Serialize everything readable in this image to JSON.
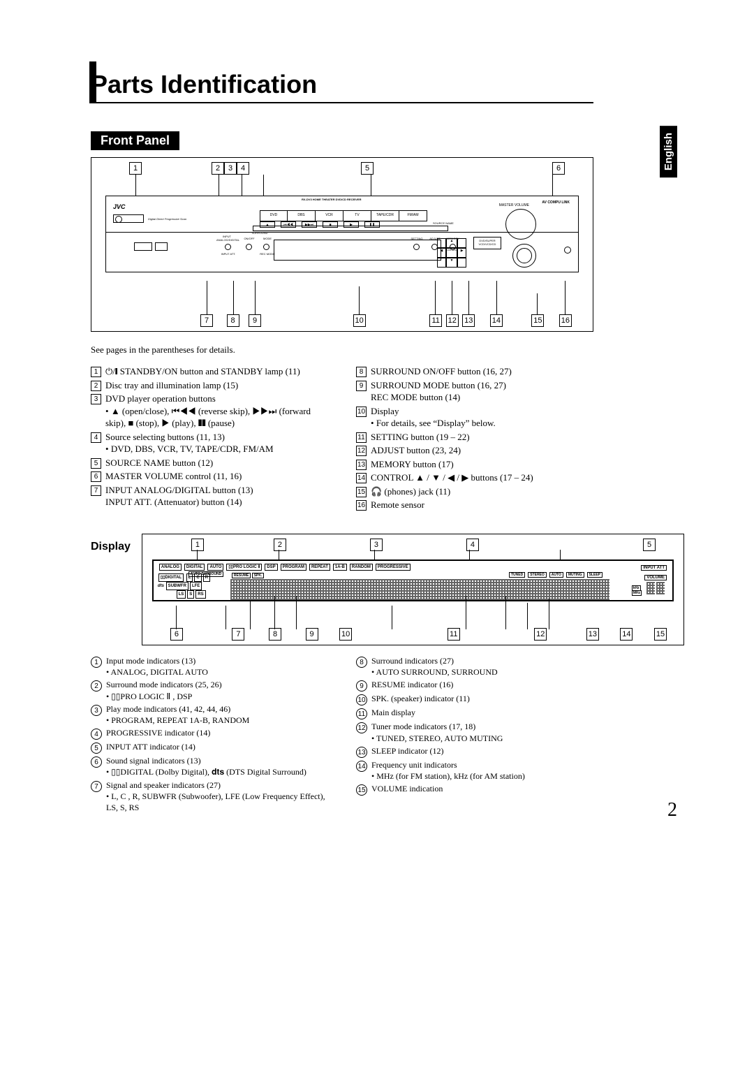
{
  "page": {
    "title": "Parts Identification",
    "language_tab": "English",
    "number": "2"
  },
  "front_panel": {
    "heading": "Front Panel",
    "intro": "See pages in the parentheses for details.",
    "top_callouts": [
      "1",
      "2",
      "3",
      "4",
      "5",
      "6"
    ],
    "bottom_callouts": [
      "7",
      "8",
      "9",
      "10",
      "11",
      "12",
      "13",
      "14",
      "15",
      "16"
    ],
    "device": {
      "model_line": "RX-DV3  HOME THEATER DVD/CD RECEIVER",
      "logo": "JVC",
      "compu": "AV COMPU LINK",
      "volume_label": "MASTER VOLUME",
      "sources": [
        "DVD",
        "DBS",
        "VCR",
        "TV",
        "TAPE/CDR",
        "FM/AM"
      ],
      "source_name": "SOURCE NAME",
      "transport": [
        "▲",
        "⏮◀◀",
        "▶▶⏭",
        "■",
        "▶",
        "❚❚"
      ],
      "lower_left_labels": [
        "ANALOG/DIGITAL",
        "ON/OFF",
        "MODE"
      ],
      "lower_left_sub": [
        "INPUT",
        "SURROUND"
      ],
      "input_att": "INPUT ATT.",
      "rec_mode": "REC MODE",
      "setting": "SETTING",
      "adjust": "ADJUST",
      "memory": "MEMORY",
      "control": "CONTROL",
      "disc_logo": "DVD/SUPER VCD/VCD/CD",
      "badges": [
        "dts",
        "DOLBY"
      ]
    },
    "items_left": [
      {
        "n": "1",
        "t": "⏻/❙ STANDBY/ON button and STANDBY lamp (11)"
      },
      {
        "n": "2",
        "t": "Disc tray and illumination lamp (15)"
      },
      {
        "n": "3",
        "t": "DVD player operation buttons",
        "subs": [
          "▲ (open/close), ⏮◀◀ (reverse skip), ▶▶⏭ (forward skip), ■ (stop), ▶ (play), ❚❚ (pause)"
        ]
      },
      {
        "n": "4",
        "t": "Source selecting buttons (11, 13)",
        "subs": [
          "DVD, DBS, VCR, TV, TAPE/CDR, FM/AM"
        ]
      },
      {
        "n": "5",
        "t": "SOURCE NAME button (12)"
      },
      {
        "n": "6",
        "t": "MASTER VOLUME control (11, 16)"
      },
      {
        "n": "7",
        "t": "INPUT ANALOG/DIGITAL button (13)\nINPUT ATT. (Attenuator) button (14)"
      }
    ],
    "items_right": [
      {
        "n": "8",
        "t": "SURROUND ON/OFF button (16, 27)"
      },
      {
        "n": "9",
        "t": "SURROUND MODE button (16, 27)\nREC MODE button (14)"
      },
      {
        "n": "10",
        "t": "Display",
        "subs": [
          "For details, see “Display” below."
        ]
      },
      {
        "n": "11",
        "t": "SETTING button (19 – 22)"
      },
      {
        "n": "12",
        "t": "ADJUST button (23, 24)"
      },
      {
        "n": "13",
        "t": "MEMORY button (17)"
      },
      {
        "n": "14",
        "t": "CONTROL ▲ / ▼ / ◀ / ▶  buttons (17 – 24)"
      },
      {
        "n": "15",
        "t": "🎧 (phones) jack (11)"
      },
      {
        "n": "16",
        "t": "Remote sensor"
      }
    ]
  },
  "display": {
    "heading": "Display",
    "top_callouts": [
      "1",
      "2",
      "3",
      "4",
      "5"
    ],
    "bottom_callouts": [
      "6",
      "7",
      "8",
      "9",
      "10",
      "11",
      "12",
      "13",
      "14",
      "15"
    ],
    "panel": {
      "row1": [
        "ANALOG",
        "DIGITAL",
        "AUTO",
        "▯▯PRO LOGIC Ⅱ",
        "DSP",
        "PROGRAM",
        "REPEAT",
        "1A-B",
        "RANDOM",
        "PROGRESSIVE"
      ],
      "row1b": "AUTO SURROUND",
      "input_att": "INPUT ATT",
      "left_block": {
        "digital": "▯▯DIGITAL",
        "lcr": [
          "L",
          "C",
          "R"
        ],
        "dts": "dts",
        "subwfr": "SUBWFR",
        "lfe": "LFE",
        "ls_s_rs": [
          "LS",
          "S",
          "RS"
        ]
      },
      "resume": "RESUME",
      "spk": "SPK.",
      "tuner_row": [
        "TUNED",
        "STEREO",
        "AUTO",
        "MUTING",
        "SLEEP"
      ],
      "volume": "VOLUME",
      "freq": [
        "kHz",
        "MHz"
      ]
    },
    "items_left": [
      {
        "n": "1",
        "t": "Input mode indicators (13)",
        "subs": [
          "ANALOG, DIGITAL AUTO"
        ]
      },
      {
        "n": "2",
        "t": "Surround mode indicators (25, 26)",
        "subs": [
          "▯▯PRO LOGIC Ⅱ , DSP"
        ]
      },
      {
        "n": "3",
        "t": "Play mode indicators (41, 42, 44, 46)",
        "subs": [
          "PROGRAM, REPEAT 1A-B, RANDOM"
        ]
      },
      {
        "n": "4",
        "t": "PROGRESSIVE indicator (14)"
      },
      {
        "n": "5",
        "t": "INPUT ATT indicator (14)"
      },
      {
        "n": "6",
        "t": "Sound signal indicators (13)",
        "subs": [
          "▯▯DIGITAL (Dolby Digital), 𝐝𝐭𝐬 (DTS Digital Surround)"
        ]
      },
      {
        "n": "7",
        "t": "Signal and speaker indicators (27)",
        "subs": [
          "L, C , R, SUBWFR (Subwoofer), LFE (Low Frequency Effect), LS, S, RS"
        ]
      }
    ],
    "items_right": [
      {
        "n": "8",
        "t": "Surround indicators (27)",
        "subs": [
          "AUTO SURROUND, SURROUND"
        ]
      },
      {
        "n": "9",
        "t": "RESUME indicator (16)"
      },
      {
        "n": "10",
        "t": "SPK. (speaker) indicator (11)"
      },
      {
        "n": "11",
        "t": "Main display"
      },
      {
        "n": "12",
        "t": "Tuner mode indicators (17, 18)",
        "subs": [
          "TUNED, STEREO, AUTO MUTING"
        ]
      },
      {
        "n": "13",
        "t": "SLEEP indicator (12)"
      },
      {
        "n": "14",
        "t": "Frequency unit indicators",
        "subs": [
          "MHz (for FM station), kHz (for AM station)"
        ]
      },
      {
        "n": "15",
        "t": "VOLUME indication"
      }
    ]
  }
}
